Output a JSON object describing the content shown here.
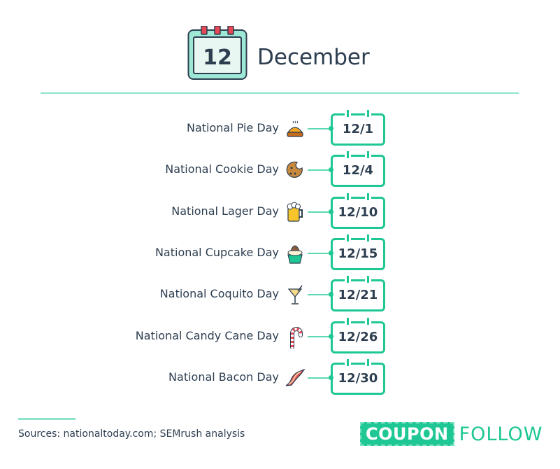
{
  "header": {
    "day": "12",
    "month": "December"
  },
  "colors": {
    "accent": "#1ec793",
    "text": "#2d3e50",
    "calendar": "#9ee9d6",
    "rings": "#e84855"
  },
  "days": [
    {
      "label": "National Pie Day",
      "date": "12/1",
      "icon": "pie-icon"
    },
    {
      "label": "National Cookie Day",
      "date": "12/4",
      "icon": "cookie-icon"
    },
    {
      "label": "National Lager Day",
      "date": "12/10",
      "icon": "beer-mug-icon"
    },
    {
      "label": "National Cupcake Day",
      "date": "12/15",
      "icon": "cupcake-icon"
    },
    {
      "label": "National Coquito Day",
      "date": "12/21",
      "icon": "cocktail-glass-icon"
    },
    {
      "label": "National Candy Cane Day",
      "date": "12/26",
      "icon": "candy-cane-icon"
    },
    {
      "label": "National Bacon Day",
      "date": "12/30",
      "icon": "bacon-icon"
    }
  ],
  "footer": {
    "sources": "Sources: nationaltoday.com; SEMrush analysis",
    "logo_left": "COUPON",
    "logo_right": "FOLLOW"
  }
}
